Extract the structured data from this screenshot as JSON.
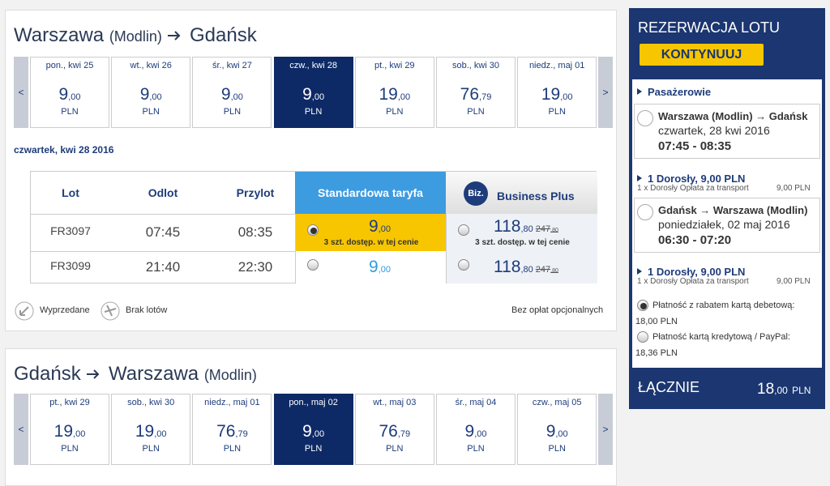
{
  "journeys": [
    {
      "origin": "Warszawa",
      "origin_airport": "(Modlin)",
      "destination": "Gdańsk",
      "destination_airport": "",
      "prev": "<",
      "next": ">",
      "selected": 3,
      "dates": [
        {
          "day": "pon., kwi 25",
          "price": "9",
          "cents": ",00",
          "currency": "PLN"
        },
        {
          "day": "wt., kwi 26",
          "price": "9",
          "cents": ",00",
          "currency": "PLN"
        },
        {
          "day": "śr., kwi 27",
          "price": "9",
          "cents": ",00",
          "currency": "PLN"
        },
        {
          "day": "czw., kwi 28",
          "price": "9",
          "cents": ",00",
          "currency": "PLN"
        },
        {
          "day": "pt., kwi 29",
          "price": "19",
          "cents": ",00",
          "currency": "PLN"
        },
        {
          "day": "sob., kwi 30",
          "price": "76",
          "cents": ",79",
          "currency": "PLN"
        },
        {
          "day": "niedz., maj 01",
          "price": "19",
          "cents": ",00",
          "currency": "PLN"
        }
      ]
    },
    {
      "origin": "Gdańsk",
      "origin_airport": "",
      "destination": "Warszawa",
      "destination_airport": "(Modlin)",
      "prev": "<",
      "next": ">",
      "selected": 3,
      "dates": [
        {
          "day": "pt., kwi 29",
          "price": "19",
          "cents": ",00",
          "currency": "PLN"
        },
        {
          "day": "sob., kwi 30",
          "price": "19",
          "cents": ",00",
          "currency": "PLN"
        },
        {
          "day": "niedz., maj 01",
          "price": "76",
          "cents": ",79",
          "currency": "PLN"
        },
        {
          "day": "pon., maj 02",
          "price": "9",
          "cents": ",00",
          "currency": "PLN"
        },
        {
          "day": "wt., maj 03",
          "price": "76",
          "cents": ",79",
          "currency": "PLN"
        },
        {
          "day": "śr., maj 04",
          "price": "9",
          "cents": ",00",
          "currency": "PLN"
        },
        {
          "day": "czw., maj 05",
          "price": "9",
          "cents": ",00",
          "currency": "PLN"
        }
      ]
    }
  ],
  "selected_date": "czwartek, kwi 28 2016",
  "flights_table": {
    "headers": [
      "Lot",
      "Odlot",
      "Przylot",
      "Standardowa taryfa",
      "Business Plus"
    ],
    "biz_badge": "Biz.",
    "rows": [
      {
        "flight": "FR3097",
        "departure": "07:45",
        "arrival": "08:35",
        "standard": {
          "price": "9",
          "cents": ",00",
          "note": "3 szt. dostęp. w tej cenie"
        },
        "business": {
          "price": "118",
          "cents": ",80",
          "old_price": "247",
          "old_cents": ",80",
          "note": "3 szt. dostęp. w tej cenie"
        }
      },
      {
        "flight": "FR3099",
        "departure": "21:40",
        "arrival": "22:30",
        "standard": {
          "price": "9",
          "cents": ",00"
        },
        "business": {
          "price": "118",
          "cents": ",80",
          "old_price": "247",
          "old_cents": ",80"
        }
      }
    ]
  },
  "legend": {
    "sold_out": "Wyprzedane",
    "no_flights": "Brak lotów",
    "note": "Bez opłat opcjonalnych"
  },
  "sidebar": {
    "title": "REZERWACJA LOTU",
    "button": "KONTYNUUJ",
    "passengers": "Pasażerowie",
    "segments": [
      {
        "route": "Warszawa (Modlin) → Gdańsk",
        "date": "czwartek, 28 kwi 2016",
        "time": "07:45 - 08:35",
        "pax": "1 Dorosły, 9,00 PLN",
        "fee_label": "1 x Dorosły Opłata za transport",
        "fee": "9,00 PLN"
      },
      {
        "route": "Gdańsk → Warszawa (Modlin)",
        "date": "poniedziałek, 02 maj 2016",
        "time": "06:30 - 07:20",
        "pax": "1 Dorosły, 9,00 PLN",
        "fee_label": "1 x Dorosły Opłata za transport",
        "fee": "9,00 PLN"
      }
    ],
    "payments": [
      {
        "label": "Płatność z rabatem kartą debetową:",
        "amount": "18,00 PLN"
      },
      {
        "label": "Płatność kartą kredytową / PayPal:",
        "amount": "18,36 PLN"
      }
    ],
    "total_label": "ŁĄCZNIE",
    "total": "18",
    "total_cents": ",00",
    "total_currency": "PLN"
  }
}
